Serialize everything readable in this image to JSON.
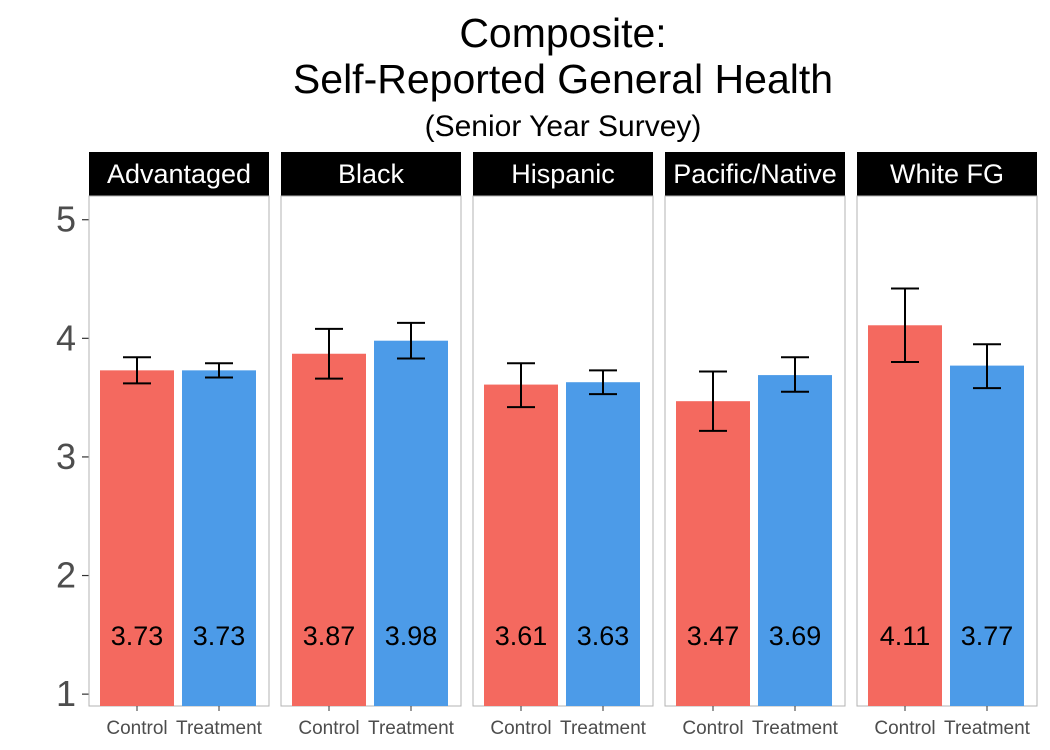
{
  "chart_data": {
    "type": "bar",
    "title_lines": [
      "Composite:",
      "Self-Reported General Health"
    ],
    "subtitle": "(Senior Year Survey)",
    "categories": [
      "Control",
      "Treatment"
    ],
    "colors": {
      "Control": "#f4695f",
      "Treatment": "#4c9be8"
    },
    "ylim": [
      0.9,
      5.2
    ],
    "yticks": [
      1,
      2,
      3,
      4,
      5
    ],
    "ytick_labels": [
      "1",
      "2",
      "3",
      "4",
      "5"
    ],
    "label_y": 1.5,
    "grid": false,
    "facets": [
      {
        "name": "Advantaged",
        "values": [
          3.73,
          3.73
        ],
        "labels": [
          "3.73",
          "3.73"
        ],
        "err_low": [
          3.62,
          3.67
        ],
        "err_high": [
          3.84,
          3.79
        ]
      },
      {
        "name": "Black",
        "values": [
          3.87,
          3.98
        ],
        "labels": [
          "3.87",
          "3.98"
        ],
        "err_low": [
          3.66,
          3.83
        ],
        "err_high": [
          4.08,
          4.13
        ]
      },
      {
        "name": "Hispanic",
        "values": [
          3.61,
          3.63
        ],
        "labels": [
          "3.61",
          "3.63"
        ],
        "err_low": [
          3.42,
          3.53
        ],
        "err_high": [
          3.79,
          3.73
        ]
      },
      {
        "name": "Pacific/Native",
        "values": [
          3.47,
          3.69
        ],
        "labels": [
          "3.47",
          "3.69"
        ],
        "err_low": [
          3.22,
          3.55
        ],
        "err_high": [
          3.72,
          3.84
        ]
      },
      {
        "name": "White FG",
        "values": [
          4.11,
          3.77
        ],
        "labels": [
          "4.11",
          "3.77"
        ],
        "err_low": [
          3.8,
          3.58
        ],
        "err_high": [
          4.42,
          3.95
        ]
      }
    ]
  }
}
